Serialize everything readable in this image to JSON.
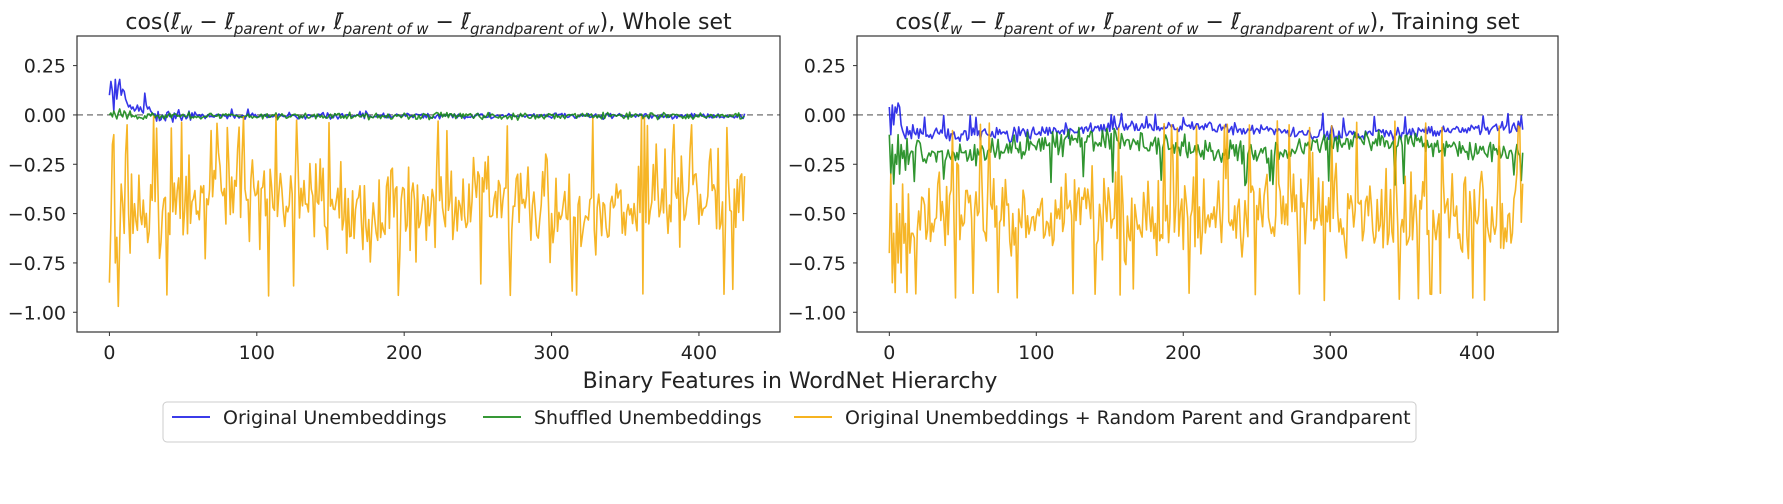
{
  "figure": {
    "xlabel": "Binary Features in WordNet Hierarchy",
    "legend_position": "bottom-center"
  },
  "chart_data": [
    {
      "type": "line",
      "title": "cos(ℓ̄_w − ℓ̄_{parent of w}, ℓ̄_{parent of w} − ℓ̄_{grandparent of w}), Whole set",
      "title_prefix": "cos(",
      "title_suffix": "), Whole set",
      "xlabel": "",
      "ylabel": "",
      "xlim": [
        -22,
        455
      ],
      "ylim": [
        -1.1,
        0.4
      ],
      "xticks": [
        0,
        100,
        200,
        300,
        400
      ],
      "yticks": [
        0.25,
        0.0,
        -0.25,
        -0.5,
        -0.75,
        -1.0
      ],
      "ytick_labels": [
        "0.25",
        "0.00",
        "−0.25",
        "−0.50",
        "−0.75",
        "−1.00"
      ],
      "reference_line": 0.0,
      "grid": false,
      "n_points": 432,
      "series": [
        {
          "name": "Original Unembeddings",
          "color": "#1f1fe6",
          "values": [
            0.1,
            0.17,
            0.12,
            0.02,
            0.18,
            0.08,
            0.15,
            0.18,
            0.1,
            0.13,
            0.12,
            0.08,
            0.06,
            0.04,
            0.05,
            0.03,
            0.04,
            0.02,
            0.03,
            0.05,
            0.02,
            0.04,
            0.02,
            0.01,
            0.11,
            0.05,
            0.03,
            0.04,
            0.02,
            0.01
          ]
        },
        {
          "name": "Shuffled Unembeddings",
          "color": "#1a8a1a",
          "values": [
            0.0,
            0.01,
            -0.01,
            0.02,
            0.0,
            -0.02,
            0.01,
            0.03,
            0.0,
            -0.01,
            0.02,
            0.01,
            -0.02,
            0.0,
            0.02,
            -0.01
          ]
        },
        {
          "name": "Original Unembeddings + Random Parent and Grandparent",
          "color": "#f5a800",
          "values": [
            -0.85,
            -0.55,
            -0.15,
            -0.1,
            -0.75,
            -0.62,
            -0.97,
            -0.65,
            -0.35,
            -0.45,
            -0.6,
            -0.2,
            -0.05,
            -0.5,
            -0.7,
            -0.3,
            -0.6,
            -0.45
          ]
        }
      ]
    },
    {
      "type": "line",
      "title": "cos(ℓ̄_w − ℓ̄_{parent of w}, ℓ̄_{parent of w} − ℓ̄_{grandparent of w}), Training set",
      "title_prefix": "cos(",
      "title_suffix": "), Training set",
      "xlabel": "",
      "ylabel": "",
      "xlim": [
        -22,
        455
      ],
      "ylim": [
        -1.1,
        0.4
      ],
      "xticks": [
        0,
        100,
        200,
        300,
        400
      ],
      "yticks": [
        0.25,
        0.0,
        -0.25,
        -0.5,
        -0.75,
        -1.0
      ],
      "ytick_labels": [
        "0.25",
        "0.00",
        "−0.25",
        "−0.50",
        "−0.75",
        "−1.00"
      ],
      "reference_line": 0.0,
      "grid": false,
      "n_points": 432,
      "series": [
        {
          "name": "Original Unembeddings",
          "color": "#1f1fe6",
          "values": [
            0.04,
            -0.1,
            0.05,
            -0.05,
            0.04,
            0.01,
            0.06,
            0.04,
            -0.05,
            -0.08,
            -0.1,
            -0.12,
            -0.06,
            -0.1,
            -0.08,
            -0.12,
            -0.05,
            -0.09,
            -0.1,
            -0.07
          ]
        },
        {
          "name": "Shuffled Unembeddings",
          "color": "#1a8a1a",
          "values": [
            -0.1,
            -0.3,
            -0.15,
            -0.35,
            -0.2,
            -0.25,
            -0.1,
            -0.3,
            -0.15,
            -0.22,
            -0.18,
            -0.28,
            -0.12,
            -0.25,
            -0.2
          ]
        },
        {
          "name": "Original Unembeddings + Random Parent and Grandparent",
          "color": "#f5a800",
          "values": [
            -0.7,
            -0.3,
            -0.85,
            -0.6,
            -0.9,
            -0.45,
            -0.75,
            -0.5,
            -0.8,
            -0.35,
            -0.65,
            -0.55,
            -0.9,
            -0.4,
            -0.7,
            -0.6
          ]
        }
      ]
    }
  ]
}
